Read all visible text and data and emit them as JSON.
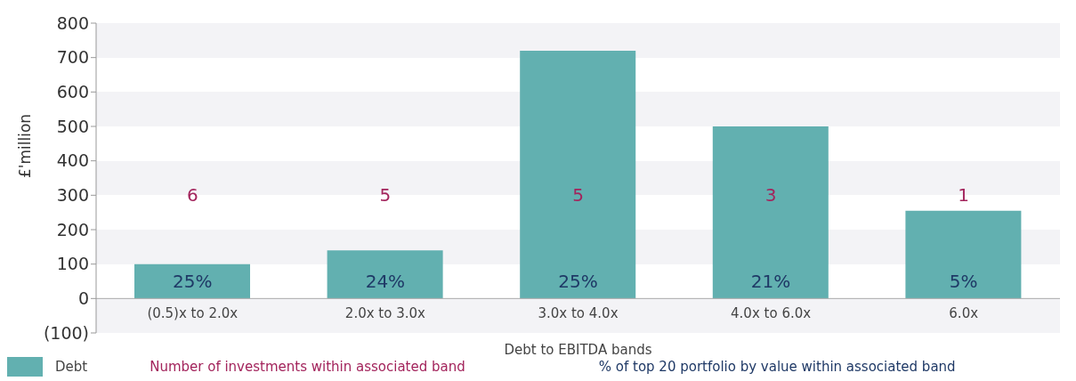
{
  "chart_data": {
    "type": "bar",
    "ylabel": "£'million",
    "xlabel": "Debt to EBITDA bands",
    "categories": [
      "(0.5)x to 2.0x",
      "2.0x to 3.0x",
      "3.0x to 4.0x",
      "4.0x to 6.0x",
      "6.0x"
    ],
    "series": [
      {
        "name": "Debt",
        "color": "#62b0b0",
        "values": [
          100,
          140,
          720,
          500,
          255
        ]
      }
    ],
    "ylim": [
      -100,
      800
    ],
    "yticks": [
      {
        "value": -100,
        "label": "(100)"
      },
      0,
      100,
      200,
      300,
      400,
      500,
      600,
      700,
      800
    ],
    "legend": "bottom left",
    "annotations": [
      "6",
      "5",
      "5",
      "3",
      "1",
      "25%",
      "24%",
      "25%",
      "21%",
      "5%",
      "Number of investments within associated band",
      "% of top 20 portfolio by value within associated band"
    ]
  }
}
